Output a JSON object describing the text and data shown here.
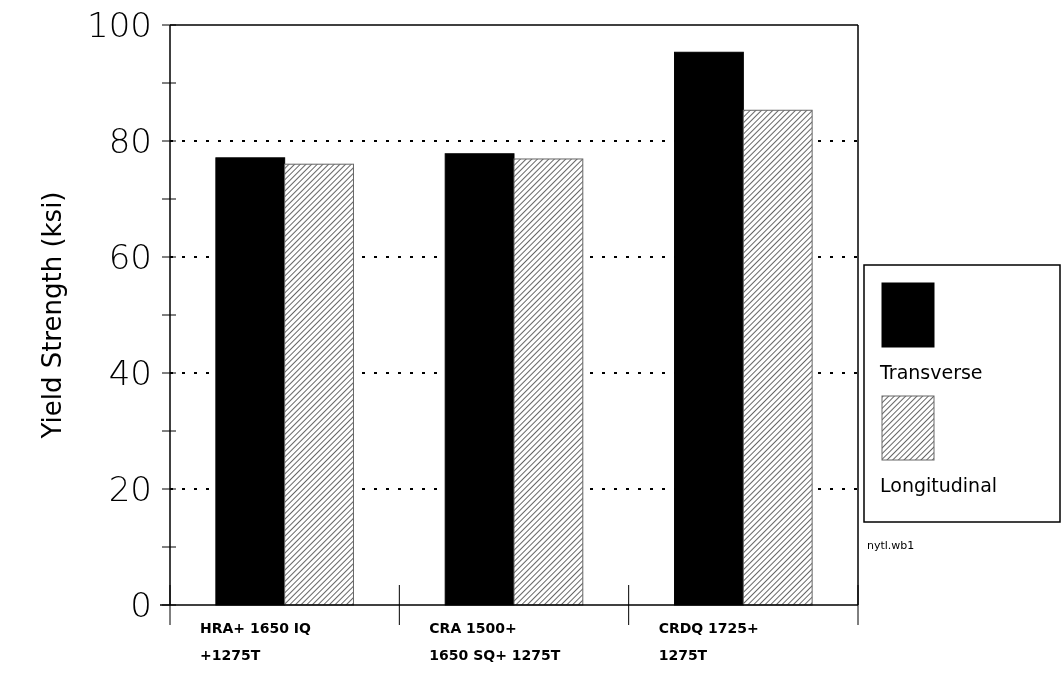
{
  "chart_data": {
    "type": "bar",
    "ylabel": "Yield Strength (ksi)",
    "categories": [
      "HRA+ 1650 IQ +1275T",
      "CRA 1500+ 1650 SQ+ 1275T",
      "CRDQ 1725+ 1275T"
    ],
    "series": [
      {
        "name": "Transverse",
        "color": "#000000",
        "values": [
          77.1,
          77.8,
          95.3
        ]
      },
      {
        "name": "Longitudinal",
        "color": "#666666",
        "values": [
          76.0,
          76.9,
          85.3
        ]
      }
    ],
    "ylim": [
      0,
      100
    ],
    "yticks": [
      0,
      {
        "value": 10,
        "label": null
      },
      20,
      {
        "value": 30,
        "label": null
      },
      40,
      {
        "value": 50,
        "label": null
      },
      60,
      {
        "value": 70,
        "label": null
      },
      80,
      {
        "value": 90,
        "label": null
      },
      100
    ],
    "grid": "y",
    "legend": "right",
    "annotations": [
      "nytl.wb1"
    ]
  }
}
